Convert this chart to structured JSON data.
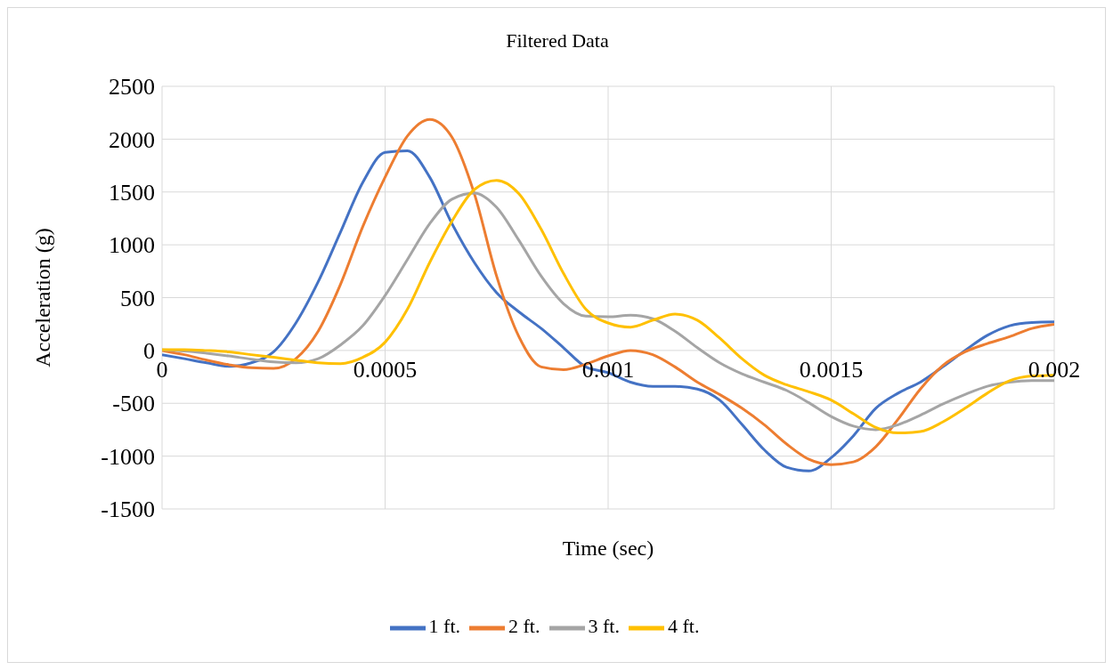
{
  "chart_data": {
    "type": "line",
    "title": "Filtered Data",
    "xlabel": "Time (sec)",
    "ylabel": "Acceleration (g)",
    "x": [
      0,
      5e-05,
      0.0001,
      0.00015,
      0.0002,
      0.00025,
      0.0003,
      0.00035,
      0.0004,
      0.00045,
      0.0005,
      0.00055,
      0.0006,
      0.00065,
      0.0007,
      0.00075,
      0.0008,
      0.00085,
      0.0009,
      0.00095,
      0.001,
      0.00105,
      0.0011,
      0.00115,
      0.0012,
      0.00125,
      0.0013,
      0.00135,
      0.0014,
      0.00145,
      0.0015,
      0.00155,
      0.0016,
      0.00165,
      0.0017,
      0.00175,
      0.0018,
      0.00185,
      0.0019,
      0.00195,
      0.002
    ],
    "series": [
      {
        "name": "1 ft.",
        "color": "#4472c4",
        "values": [
          -40,
          -78,
          -117,
          -150,
          -117,
          -13,
          260,
          650,
          1120,
          1590,
          1875,
          1890,
          1640,
          1200,
          833,
          547,
          365,
          208,
          26,
          -156,
          -210,
          -300,
          -340,
          -340,
          -365,
          -470,
          -700,
          -940,
          -1105,
          -1140,
          -1015,
          -807,
          -547,
          -404,
          -300,
          -156,
          0,
          143,
          234,
          265,
          270
        ]
      },
      {
        "name": "2 ft.",
        "color": "#ed7d31",
        "values": [
          0,
          -40,
          -91,
          -135,
          -164,
          -170,
          -78,
          182,
          625,
          1172,
          1640,
          2030,
          2187,
          2018,
          1484,
          703,
          130,
          -156,
          -182,
          -130,
          -52,
          0,
          -40,
          -156,
          -300,
          -417,
          -547,
          -703,
          -885,
          -1030,
          -1080,
          -1055,
          -911,
          -651,
          -365,
          -143,
          -13,
          65,
          130,
          208,
          247
        ]
      },
      {
        "name": "3 ft.",
        "color": "#a5a5a5",
        "values": [
          5,
          -5,
          -26,
          -52,
          -83,
          -109,
          -117,
          -78,
          52,
          234,
          520,
          860,
          1200,
          1432,
          1490,
          1354,
          1042,
          703,
          443,
          325,
          318,
          333,
          300,
          182,
          26,
          -117,
          -221,
          -300,
          -378,
          -495,
          -625,
          -716,
          -750,
          -703,
          -612,
          -508,
          -417,
          -339,
          -300,
          -286,
          -286
        ]
      },
      {
        "name": "4 ft.",
        "color": "#ffc000",
        "values": [
          8,
          8,
          0,
          -13,
          -40,
          -65,
          -91,
          -117,
          -125,
          -65,
          78,
          390,
          833,
          1224,
          1523,
          1610,
          1484,
          1146,
          729,
          390,
          260,
          221,
          286,
          344,
          286,
          117,
          -78,
          -234,
          -325,
          -391,
          -469,
          -599,
          -729,
          -781,
          -768,
          -677,
          -547,
          -404,
          -286,
          -242,
          -234
        ]
      }
    ],
    "xlim": [
      0,
      0.002
    ],
    "xticks": [
      0,
      0.0005,
      0.001,
      0.0015,
      0.002
    ],
    "ylim": [
      -1500,
      2500
    ],
    "yticks": [
      -1500,
      -1000,
      -500,
      0,
      500,
      1000,
      1500,
      2000,
      2500
    ],
    "grid": true,
    "legend": "bottom"
  }
}
